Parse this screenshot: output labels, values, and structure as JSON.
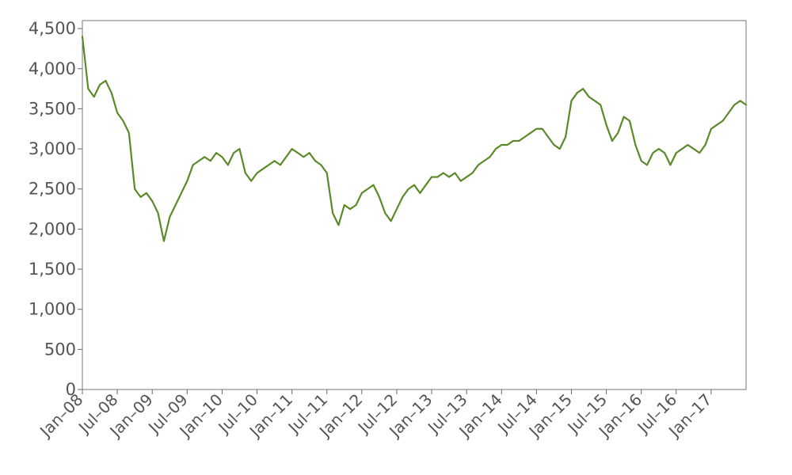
{
  "chart_data": {
    "type": "line",
    "title": "",
    "xlabel": "",
    "ylabel": "",
    "xlim": [
      "2008-01",
      "2017-07"
    ],
    "ylim": [
      0,
      4600
    ],
    "grid": false,
    "legend": "none",
    "y_ticks": [
      0,
      500,
      1000,
      1500,
      2000,
      2500,
      3000,
      3500,
      4000,
      4500
    ],
    "y_tick_labels": [
      "0",
      "500",
      "1,000",
      "1,500",
      "2,000",
      "2,500",
      "3,000",
      "3,500",
      "4,000",
      "4,500"
    ],
    "x_ticks": [
      "2008-01",
      "2008-07",
      "2009-01",
      "2009-07",
      "2010-01",
      "2010-07",
      "2011-01",
      "2011-07",
      "2012-01",
      "2012-07",
      "2013-01",
      "2013-07",
      "2014-01",
      "2014-07",
      "2015-01",
      "2015-07",
      "2016-01",
      "2016-07",
      "2017-01"
    ],
    "x_tick_labels": [
      "Jan–08",
      "Jul–08",
      "Jan–09",
      "Jul–09",
      "Jan–10",
      "Jul–10",
      "Jan–11",
      "Jul–11",
      "Jan–12",
      "Jul–12",
      "Jan–13",
      "Jul–13",
      "Jan–14",
      "Jul–14",
      "Jan–15",
      "Jul–15",
      "Jan–16",
      "Jul–16",
      "Jan–17"
    ],
    "series": [
      {
        "color": "#5a8a28",
        "x": [
          "2008-01",
          "2008-02",
          "2008-03",
          "2008-04",
          "2008-05",
          "2008-06",
          "2008-07",
          "2008-08",
          "2008-09",
          "2008-10",
          "2008-11",
          "2008-12",
          "2009-01",
          "2009-02",
          "2009-03",
          "2009-04",
          "2009-05",
          "2009-06",
          "2009-07",
          "2009-08",
          "2009-09",
          "2009-10",
          "2009-11",
          "2009-12",
          "2010-01",
          "2010-02",
          "2010-03",
          "2010-04",
          "2010-05",
          "2010-06",
          "2010-07",
          "2010-08",
          "2010-09",
          "2010-10",
          "2010-11",
          "2010-12",
          "2011-01",
          "2011-02",
          "2011-03",
          "2011-04",
          "2011-05",
          "2011-06",
          "2011-07",
          "2011-08",
          "2011-09",
          "2011-10",
          "2011-11",
          "2011-12",
          "2012-01",
          "2012-02",
          "2012-03",
          "2012-04",
          "2012-05",
          "2012-06",
          "2012-07",
          "2012-08",
          "2012-09",
          "2012-10",
          "2012-11",
          "2012-12",
          "2013-01",
          "2013-02",
          "2013-03",
          "2013-04",
          "2013-05",
          "2013-06",
          "2013-07",
          "2013-08",
          "2013-09",
          "2013-10",
          "2013-11",
          "2013-12",
          "2014-01",
          "2014-02",
          "2014-03",
          "2014-04",
          "2014-05",
          "2014-06",
          "2014-07",
          "2014-08",
          "2014-09",
          "2014-10",
          "2014-11",
          "2014-12",
          "2015-01",
          "2015-02",
          "2015-03",
          "2015-04",
          "2015-05",
          "2015-06",
          "2015-07",
          "2015-08",
          "2015-09",
          "2015-10",
          "2015-11",
          "2015-12",
          "2016-01",
          "2016-02",
          "2016-03",
          "2016-04",
          "2016-05",
          "2016-06",
          "2016-07",
          "2016-08",
          "2016-09",
          "2016-10",
          "2016-11",
          "2016-12",
          "2017-01",
          "2017-02",
          "2017-03",
          "2017-04",
          "2017-05",
          "2017-06",
          "2017-07"
        ],
        "values": [
          4400,
          3750,
          3650,
          3800,
          3850,
          3700,
          3450,
          3350,
          3200,
          2500,
          2400,
          2450,
          2350,
          2200,
          1850,
          2150,
          2300,
          2450,
          2600,
          2800,
          2850,
          2900,
          2850,
          2950,
          2900,
          2800,
          2950,
          3000,
          2700,
          2600,
          2700,
          2750,
          2800,
          2850,
          2800,
          2900,
          3000,
          2950,
          2900,
          2950,
          2850,
          2800,
          2700,
          2200,
          2050,
          2300,
          2250,
          2300,
          2450,
          2500,
          2550,
          2400,
          2200,
          2100,
          2250,
          2400,
          2500,
          2550,
          2450,
          2550,
          2650,
          2650,
          2700,
          2650,
          2700,
          2600,
          2650,
          2700,
          2800,
          2850,
          2900,
          3000,
          3050,
          3050,
          3100,
          3100,
          3150,
          3200,
          3250,
          3250,
          3150,
          3050,
          3000,
          3150,
          3600,
          3700,
          3750,
          3650,
          3600,
          3550,
          3300,
          3100,
          3200,
          3400,
          3350,
          3050,
          2850,
          2800,
          2950,
          3000,
          2950,
          2800,
          2950,
          3000,
          3050,
          3000,
          2950,
          3050,
          3250,
          3300,
          3350,
          3450,
          3550,
          3600,
          3550
        ]
      }
    ]
  }
}
